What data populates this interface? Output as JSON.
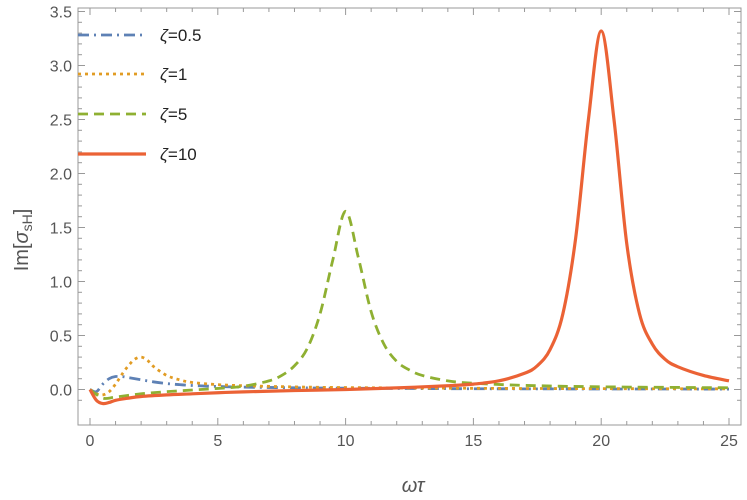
{
  "chart_data": {
    "type": "line",
    "title": "",
    "xlabel": "ωτ",
    "ylabel": "Im[σ_sH]",
    "ylabel_parts": {
      "prefix": "Im[",
      "symbol": "σ",
      "subscript": "sH",
      "suffix": "]"
    },
    "xlim": [
      0,
      25
    ],
    "ylim": [
      -0.2,
      3.5
    ],
    "xticks": [
      0,
      5,
      10,
      15,
      20,
      25
    ],
    "yticks": [
      0.0,
      0.5,
      1.0,
      1.5,
      2.0,
      2.5,
      3.0,
      3.5
    ],
    "xtick_labels": [
      "0",
      "5",
      "10",
      "15",
      "20",
      "25"
    ],
    "ytick_labels": [
      "0.0",
      "0.5",
      "1.0",
      "1.5",
      "2.0",
      "2.5",
      "3.0",
      "3.5"
    ],
    "grid": false,
    "legend_position": "top-left",
    "series": [
      {
        "name": "ζ=0.5",
        "color": "#5E81B5",
        "dash": "dash-dot",
        "x": [
          0,
          0.25,
          0.5,
          0.75,
          1.0,
          1.25,
          1.5,
          2.0,
          2.5,
          3.0,
          3.5,
          4.0,
          5.0,
          6.0,
          8.0,
          10.0,
          15.0,
          20.0,
          25.0
        ],
        "y": [
          0.0,
          -0.02,
          0.05,
          0.1,
          0.12,
          0.12,
          0.11,
          0.09,
          0.07,
          0.055,
          0.045,
          0.037,
          0.028,
          0.022,
          0.016,
          0.012,
          0.007,
          0.005,
          0.004
        ]
      },
      {
        "name": "ζ=1",
        "color": "#E19C24",
        "dash": "dotted",
        "x": [
          0,
          0.25,
          0.5,
          0.75,
          1.0,
          1.25,
          1.5,
          1.75,
          2.0,
          2.25,
          2.5,
          3.0,
          3.5,
          4.0,
          5.0,
          6.0,
          8.0,
          10.0,
          15.0,
          20.0,
          25.0
        ],
        "y": [
          0.0,
          -0.04,
          -0.05,
          -0.02,
          0.05,
          0.14,
          0.22,
          0.28,
          0.3,
          0.27,
          0.21,
          0.13,
          0.09,
          0.065,
          0.045,
          0.035,
          0.024,
          0.018,
          0.011,
          0.008,
          0.006
        ]
      },
      {
        "name": "ζ=5",
        "color": "#8FB032",
        "dash": "dashed",
        "x": [
          0,
          0.5,
          1.0,
          2.0,
          3.0,
          4.0,
          5.0,
          6.0,
          7.0,
          7.5,
          8.0,
          8.5,
          9.0,
          9.5,
          10.0,
          10.5,
          11.0,
          11.5,
          12.0,
          12.5,
          13.0,
          14.0,
          15.0,
          17.0,
          20.0,
          25.0
        ],
        "y": [
          0.0,
          -0.08,
          -0.07,
          -0.04,
          -0.02,
          -0.005,
          0.01,
          0.03,
          0.08,
          0.13,
          0.22,
          0.38,
          0.7,
          1.2,
          1.65,
          1.22,
          0.72,
          0.42,
          0.26,
          0.18,
          0.13,
          0.08,
          0.058,
          0.038,
          0.025,
          0.016
        ]
      },
      {
        "name": "ζ=10",
        "color": "#EB6235",
        "dash": "solid",
        "x": [
          0,
          0.25,
          0.5,
          0.75,
          1.0,
          1.5,
          2.0,
          3.0,
          4.0,
          5.0,
          6.0,
          8.0,
          10.0,
          12.0,
          14.0,
          15.0,
          16.0,
          17.0,
          17.5,
          18.0,
          18.5,
          19.0,
          19.5,
          20.0,
          20.5,
          21.0,
          21.5,
          22.0,
          22.5,
          23.0,
          24.0,
          25.0
        ],
        "y": [
          0.0,
          -0.1,
          -0.13,
          -0.12,
          -0.1,
          -0.08,
          -0.065,
          -0.05,
          -0.04,
          -0.03,
          -0.022,
          -0.01,
          0.0,
          0.015,
          0.035,
          0.05,
          0.08,
          0.15,
          0.22,
          0.37,
          0.7,
          1.4,
          2.5,
          3.32,
          2.5,
          1.35,
          0.7,
          0.42,
          0.28,
          0.21,
          0.13,
          0.08
        ]
      }
    ]
  }
}
